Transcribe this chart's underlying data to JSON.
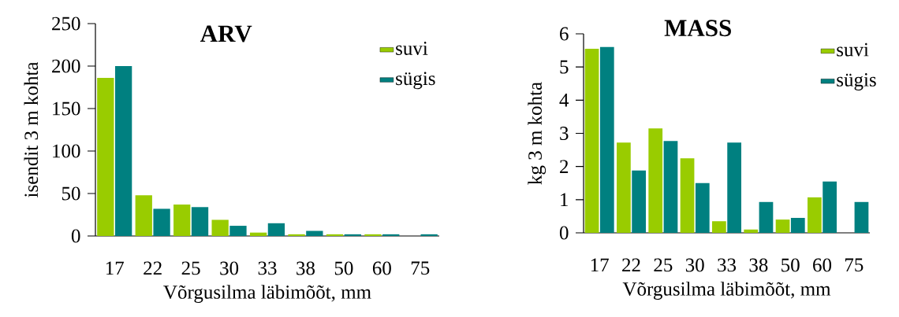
{
  "chart_data": [
    {
      "type": "bar",
      "title": "ARV",
      "xlabel": "Võrgusilma läbimõõt, mm",
      "ylabel": "isendit 3 m kohta",
      "categories": [
        "17",
        "22",
        "25",
        "30",
        "33",
        "38",
        "50",
        "60",
        "75"
      ],
      "series": [
        {
          "name": "suvi",
          "color": "#99cc00",
          "values": [
            186,
            48,
            37,
            19,
            4,
            2,
            2,
            2,
            0
          ]
        },
        {
          "name": "sügis",
          "color": "#008080",
          "values": [
            200,
            32,
            34,
            12,
            15,
            6,
            2,
            2,
            2
          ]
        }
      ],
      "ylim": [
        0,
        250
      ],
      "yticks": [
        0,
        50,
        100,
        150,
        200,
        250
      ],
      "legend": "top right"
    },
    {
      "type": "bar",
      "title": "MASS",
      "xlabel": "Võrgusilma läbimõõt, mm",
      "ylabel": "kg 3 m kohta",
      "categories": [
        "17",
        "22",
        "25",
        "30",
        "33",
        "38",
        "50",
        "60",
        "75"
      ],
      "series": [
        {
          "name": "suvi",
          "color": "#99cc00",
          "values": [
            5.55,
            2.72,
            3.15,
            2.25,
            0.35,
            0.1,
            0.4,
            1.07,
            0
          ]
        },
        {
          "name": "sügis",
          "color": "#008080",
          "values": [
            5.6,
            1.88,
            2.77,
            1.5,
            2.72,
            0.93,
            0.45,
            1.55,
            0.93
          ]
        }
      ],
      "ylim": [
        0,
        6
      ],
      "yticks": [
        0,
        1,
        2,
        3,
        4,
        5,
        6
      ],
      "legend": "top right"
    }
  ]
}
